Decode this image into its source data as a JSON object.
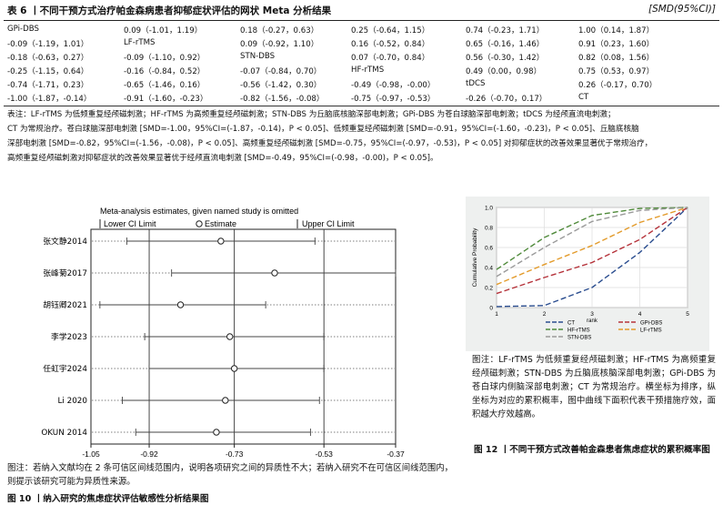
{
  "table6": {
    "title": "表 6 丨不同干预方式治疗帕金森病患者抑郁症状评估的网状 Meta 分析结果",
    "unit": "[SMD(95%CI)]",
    "rows": [
      [
        "GPi-DBS",
        "0.09（-1.01，1.19）",
        "0.18（-0.27，0.63）",
        "0.25（-0.64，1.15）",
        "0.74（-0.23，1.71）",
        "1.00（0.14，1.87）"
      ],
      [
        "-0.09（-1.19，1.01）",
        "LF-rTMS",
        "0.09（-0.92，1.10）",
        "0.16（-0.52，0.84）",
        "0.65（-0.16，1.46）",
        "0.91（0.23，1.60）"
      ],
      [
        "-0.18（-0.63，0.27）",
        "-0.09（-1.10，0.92）",
        "STN-DBS",
        "0.07（-0.70，0.84）",
        "0.56（-0.30，1.42）",
        "0.82（0.08，1.56）"
      ],
      [
        "-0.25（-1.15，0.64）",
        "-0.16（-0.84，0.52）",
        "-0.07（-0.84，0.70）",
        "HF-rTMS",
        "0.49（0.00，0.98）",
        "0.75（0.53，0.97）"
      ],
      [
        "-0.74（-1.71，0.23）",
        "-0.65（-1.46，0.16）",
        "-0.56（-1.42，0.30）",
        "-0.49（-0.98，-0.00）",
        "tDCS",
        "0.26（-0.17，0.70）"
      ],
      [
        "-1.00（-1.87，-0.14）",
        "-0.91（-1.60，-0.23）",
        "-0.82（-1.56，-0.08）",
        "-0.75（-0.97，-0.53）",
        "-0.26（-0.70，0.17）",
        "CT"
      ]
    ],
    "note": [
      "表注：LF-rTMS 为低频重复经颅磁刺激；HF-rTMS 为高频重复经颅磁刺激；STN-DBS 为丘脑底核脑深部电刺激；GPi-DBS 为苍白球脑深部电刺激；tDCS 为经颅直流电刺激；",
      "CT 为常规治疗。苍白球脑深部电刺激 [SMD=-1.00，95%CI=(-1.87，-0.14)，P < 0.05]、低频重复经颅磁刺激 [SMD=-0.91，95%CI=(-1.60，-0.23)，P < 0.05]、丘脑底核脑",
      "深部电刺激 [SMD=-0.82，95%CI=(-1.56，-0.08)，P < 0.05]、高频重复经颅磁刺激 [SMD=-0.75，95%CI=(-0.97，-0.53)，P < 0.05] 对抑郁症状的改善效果显著优于常规治疗，",
      "高频重复经颅磁刺激对抑郁症状的改善效果显著优于经颅直流电刺激 [SMD=-0.49，95%CI=(-0.98，-0.00)，P < 0.05]。"
    ]
  },
  "chart_data": [
    {
      "type": "scatter",
      "title": "Meta-analysis estimates, given named study is omitted",
      "legend": [
        "Lower CI Limit",
        "Estimate",
        "Upper CI Limit"
      ],
      "categories": [
        "张文静2014",
        "张峰菊2017",
        "胡钰卿2021",
        "李学2023",
        "任虹宇2024",
        "Li 2020",
        "OKUN 2014"
      ],
      "estimate": [
        -0.76,
        -0.64,
        -0.85,
        -0.74,
        -0.73,
        -0.75,
        -0.77
      ],
      "lower": [
        -0.97,
        -0.87,
        -1.03,
        -0.93,
        -0.92,
        -0.98,
        -0.95
      ],
      "upper": [
        -0.55,
        -0.37,
        -0.66,
        -0.53,
        -0.53,
        -0.54,
        -0.56
      ],
      "x_ticks": [
        "-1.05",
        "-0.92",
        "-0.73",
        "-0.53",
        "-0.37"
      ],
      "x_tick_values": [
        -1.05,
        -0.92,
        -0.73,
        -0.53,
        -0.37
      ],
      "reference_lines": [
        -0.92,
        -0.73,
        -0.53
      ],
      "xlim": [
        -1.05,
        -0.37
      ]
    },
    {
      "type": "line",
      "title": "",
      "xlabel": "rank",
      "ylabel": "Cumulative Probability",
      "x": [
        1,
        2,
        3,
        4,
        5
      ],
      "x_ticks": [
        1,
        2,
        3,
        4,
        5
      ],
      "y_ticks": [
        0,
        0.2,
        0.4,
        0.6,
        0.8,
        1.0
      ],
      "ylim": [
        0,
        1
      ],
      "grid": true,
      "series": [
        {
          "name": "CT",
          "color": "#2a4d8f",
          "dash": "6,3",
          "values": [
            0.01,
            0.02,
            0.2,
            0.55,
            1.0
          ]
        },
        {
          "name": "GPi-DBS",
          "color": "#b5323a",
          "dash": "6,3",
          "values": [
            0.14,
            0.3,
            0.45,
            0.68,
            1.0
          ]
        },
        {
          "name": "HF-rTMS",
          "color": "#4f8a3a",
          "dash": "6,3",
          "values": [
            0.38,
            0.7,
            0.92,
            0.99,
            1.0
          ]
        },
        {
          "name": "LF-rTMS",
          "color": "#e39b2b",
          "dash": "6,3",
          "values": [
            0.23,
            0.43,
            0.62,
            0.85,
            1.0
          ]
        },
        {
          "name": "STN-DBS",
          "color": "#9a9a9a",
          "dash": "6,3",
          "values": [
            0.31,
            0.6,
            0.86,
            0.97,
            1.0
          ]
        }
      ]
    }
  ],
  "figure10": {
    "caption": "图注：若纳入文献均在 2 条可信区间线范围内，说明各项研究之间的异质性不大；若纳入研究不在可信区间线范围内，则提示该研究可能为异质性来源。",
    "title": "图 10 丨纳入研究的焦虑症状评估敏感性分析结果图"
  },
  "figure12": {
    "caption": "图注：LF-rTMS 为低频重复经颅磁刺激；HF-rTMS 为高频重复经颅磁刺激；STN-DBS 为丘脑底核脑深部电刺激；GPi-DBS 为苍白球内侧脑深部电刺激；CT 为常规治疗。横坐标为排序，纵坐标为对应的累积概率，图中曲线下面积代表干预措施疗效，面积越大疗效越高。",
    "title": "图 12 丨不同干预方式改善帕金森患者焦虑症状的累积概率图"
  },
  "colors": {
    "axis": "#222222",
    "grid": "#dddddd",
    "ci_line": "#444444"
  }
}
